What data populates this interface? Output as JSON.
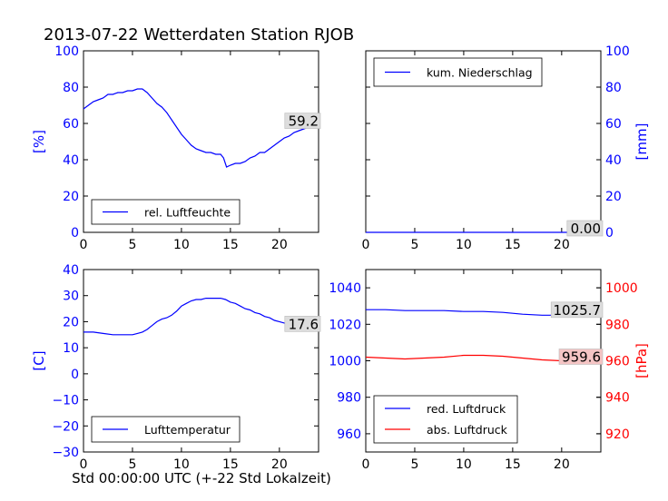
{
  "figure": {
    "title": "2013-07-22 Wetterdaten Station RJOB",
    "xlabel": "Std 00:00:00 UTC (+-22 Std Lokalzeit)"
  },
  "colors": {
    "axis_left": "#0000ff",
    "axis_right_pressure": "#ff0000",
    "frame": "#000000",
    "annotation_bg": "#dddddd",
    "annotation_bg_red": "#f4c4c4"
  },
  "chart_data": [
    {
      "id": "humidity",
      "type": "line",
      "ylabel": "[%]",
      "xlim": [
        0,
        24
      ],
      "ylim": [
        0,
        100
      ],
      "xticks": [
        0,
        5,
        10,
        15,
        20
      ],
      "yticks": [
        0,
        20,
        40,
        60,
        80,
        100
      ],
      "legend_position": "lower-left",
      "series": [
        {
          "name": "rel. Luftfeuchte",
          "color": "#0000ff",
          "x": [
            0,
            0.5,
            1,
            1.5,
            2,
            2.5,
            3,
            3.5,
            4,
            4.5,
            5,
            5.5,
            6,
            6.5,
            7,
            7.5,
            8,
            8.5,
            9,
            9.5,
            10,
            10.5,
            11,
            11.5,
            12,
            12.5,
            13,
            13.5,
            14,
            14.3,
            14.6,
            15,
            15.5,
            16,
            16.5,
            17,
            17.5,
            18,
            18.5,
            19,
            19.5,
            20,
            20.5,
            21,
            21.5,
            22,
            22.5,
            23,
            23.5,
            24
          ],
          "y": [
            68,
            70,
            72,
            73,
            74,
            76,
            76,
            77,
            77,
            78,
            78,
            79,
            79,
            77,
            74,
            71,
            69,
            66,
            62,
            58,
            54,
            51,
            48,
            46,
            45,
            44,
            44,
            43,
            43,
            41,
            36,
            37,
            38,
            38,
            39,
            41,
            42,
            44,
            44,
            46,
            48,
            50,
            52,
            53,
            55,
            56,
            57,
            58,
            59,
            59.2
          ]
        }
      ],
      "annotations": [
        {
          "text": "59.2",
          "x": 24,
          "y": 59.2
        }
      ]
    },
    {
      "id": "precipitation",
      "type": "line",
      "ylabel": "[mm]",
      "xlim": [
        0,
        24
      ],
      "ylim": [
        0,
        100
      ],
      "xticks": [
        0,
        5,
        10,
        15,
        20
      ],
      "yticks": [
        0,
        20,
        40,
        60,
        80,
        100
      ],
      "legend_position": "upper-left",
      "series": [
        {
          "name": "kum. Niederschlag",
          "color": "#0000ff",
          "x": [
            0,
            24
          ],
          "y": [
            0,
            0
          ]
        }
      ],
      "annotations": [
        {
          "text": "0.00",
          "x": 24,
          "y": 0
        }
      ]
    },
    {
      "id": "temperature",
      "type": "line",
      "ylabel": "[C]",
      "xlim": [
        0,
        24
      ],
      "ylim": [
        -30,
        40
      ],
      "xticks": [
        0,
        5,
        10,
        15,
        20
      ],
      "yticks": [
        -30,
        -20,
        -10,
        0,
        10,
        20,
        30,
        40
      ],
      "legend_position": "lower-left",
      "series": [
        {
          "name": "Lufttemperatur",
          "color": "#0000ff",
          "x": [
            0,
            1,
            2,
            3,
            4,
            5,
            5.5,
            6,
            6.5,
            7,
            7.5,
            8,
            8.5,
            9,
            9.5,
            10,
            10.5,
            11,
            11.5,
            12,
            12.5,
            13,
            13.5,
            14,
            14.5,
            15,
            15.5,
            16,
            16.5,
            17,
            17.5,
            18,
            18.5,
            19,
            19.5,
            20,
            20.5,
            21,
            21.5,
            22,
            22.5,
            23,
            23.5,
            24
          ],
          "y": [
            16,
            16,
            15.5,
            15,
            15,
            15,
            15.5,
            16,
            17,
            18.5,
            20,
            21,
            21.5,
            22.5,
            24,
            26,
            27,
            28,
            28.5,
            28.5,
            29,
            29,
            29,
            29,
            28.5,
            27.5,
            27,
            26,
            25,
            24.5,
            23.5,
            23,
            22,
            21.5,
            20.5,
            20,
            19.5,
            19,
            18.5,
            18,
            17.8,
            17.7,
            17.6,
            17.6
          ]
        }
      ],
      "annotations": [
        {
          "text": "17.6",
          "x": 24,
          "y": 17.6
        }
      ]
    },
    {
      "id": "pressure",
      "type": "line",
      "xlim": [
        0,
        24
      ],
      "ylim": [
        950,
        1050
      ],
      "xticks": [
        0,
        5,
        10,
        15,
        20
      ],
      "yticks": [
        960,
        980,
        1000,
        1020,
        1040
      ],
      "y2label": "[hPa]",
      "y2lim": [
        910,
        1010
      ],
      "y2ticks": [
        920,
        940,
        960,
        980,
        1000
      ],
      "legend_position": "lower-left",
      "series": [
        {
          "name": "red. Luftdruck",
          "color": "#0000ff",
          "axis": "left",
          "x": [
            0,
            2,
            4,
            6,
            8,
            10,
            12,
            14,
            16,
            18,
            20,
            22,
            24
          ],
          "y": [
            1028,
            1028,
            1027.5,
            1027.5,
            1027.5,
            1027,
            1027,
            1026.5,
            1025.5,
            1025,
            1025,
            1025.5,
            1025.7
          ]
        },
        {
          "name": "abs. Luftdruck",
          "color": "#ff0000",
          "axis": "left",
          "x": [
            0,
            2,
            4,
            6,
            8,
            10,
            12,
            14,
            16,
            18,
            20,
            22,
            24
          ],
          "y": [
            1002,
            1001.5,
            1001,
            1001.5,
            1002,
            1003,
            1003,
            1002.5,
            1001.5,
            1000.5,
            1000,
            1000,
            1000
          ]
        }
      ],
      "annotations": [
        {
          "text": "1025.7",
          "x": 24,
          "y": 1025.7,
          "style": "grey"
        },
        {
          "text": "959.6",
          "x": 24,
          "y": 1000,
          "style": "red"
        }
      ]
    }
  ]
}
